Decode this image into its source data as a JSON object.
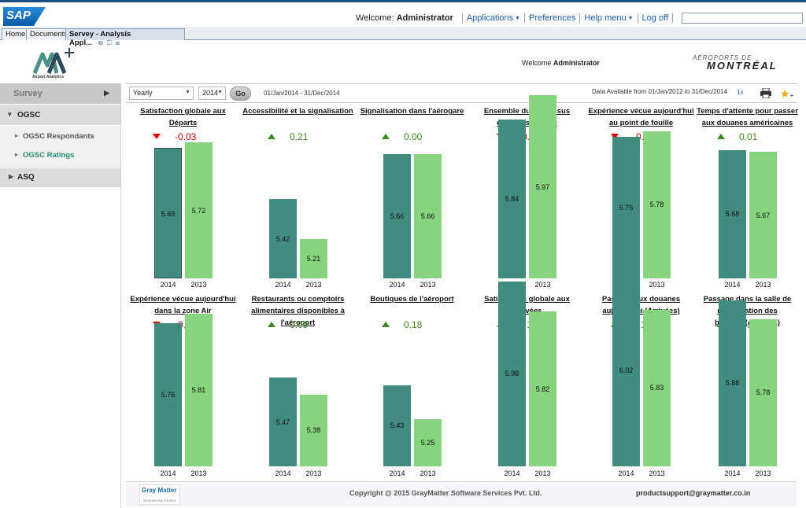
{
  "sap": {
    "logo": "SAP",
    "welcome_prefix": "Welcome:",
    "user": "Administrator",
    "nav": [
      "Applications",
      "Preferences",
      "Help menu",
      "Log off"
    ],
    "search_value": ""
  },
  "tabs": [
    "Home",
    "Documents",
    "Servey - Analysis Appl..."
  ],
  "app": {
    "logo_caption": "Airport Analytics",
    "welcome_label": "Welcome",
    "welcome_user": "Administrator",
    "brand_top": "AÉROPORTS DE",
    "brand_bottom": "MONTRÉAL"
  },
  "sidebar": {
    "survey": "Survey",
    "ogsc": "OGSC",
    "ogsc_items": [
      "OGSC Respondants",
      "OGSC Ratings"
    ],
    "asq": "ASQ"
  },
  "filters": {
    "period": "Yearly",
    "year": "2014",
    "go_label": "Go",
    "date_range": "01/Jan/2014 - 31/Dec/2014",
    "availability": "Data Available from 01/Jan/2012 to 31/Dec/2014",
    "zoom": "1x"
  },
  "colors": {
    "bar_2014": "#408c7e",
    "bar_2013": "#86d47e",
    "negative": "#e00000",
    "positive": "#3f8a20"
  },
  "chart_data": {
    "type": "bar",
    "categories": [
      "2014",
      "2013"
    ],
    "panels": [
      {
        "title": "Satisfaction globale aux Départs",
        "delta": "-0.03",
        "direction": "down",
        "values": [
          5.69,
          5.72
        ]
      },
      {
        "title": "Accessibilité et la signalisation",
        "delta": "0.21",
        "direction": "up",
        "values": [
          5.42,
          5.21
        ]
      },
      {
        "title": "Signalisation dans l'aérogare",
        "delta": "0.00",
        "direction": "up",
        "values": [
          5.66,
          5.66
        ]
      },
      {
        "title": "Ensemble du processus d'enregistrement",
        "delta": "-0.13",
        "direction": "down",
        "values": [
          5.84,
          5.97
        ]
      },
      {
        "title": "Expérience vécue aujourd'hui au point de fouille",
        "delta": "-0.03",
        "direction": "down",
        "values": [
          5.75,
          5.78
        ]
      },
      {
        "title": "Temps d'attente pour passer aux douanes américaines",
        "delta": "0.01",
        "direction": "up",
        "values": [
          5.68,
          5.67
        ]
      },
      {
        "title": "Expérience vécue aujourd'hui dans la zone Air",
        "delta": "-0.05",
        "direction": "down",
        "values": [
          5.76,
          5.81
        ]
      },
      {
        "title": "Restaurants ou comptoirs alimentaires disponibles à l'aéroport",
        "delta": "0.09",
        "direction": "up",
        "values": [
          5.47,
          5.38
        ]
      },
      {
        "title": "Boutiques de l'aéroport",
        "delta": "0.18",
        "direction": "up",
        "values": [
          5.43,
          5.25
        ]
      },
      {
        "title": "Satisfaction globale aux Arrivées",
        "delta": "0.15",
        "direction": "up",
        "values": [
          5.98,
          5.82
        ]
      },
      {
        "title": "Passage aux douanes aujourd'hui (Arrivées)",
        "delta": "0.18",
        "direction": "up",
        "values": [
          6.02,
          5.83
        ]
      },
      {
        "title": "Passage dans la salle de récupération des bagages(Arrivées)",
        "delta": "0.10",
        "direction": "up",
        "values": [
          5.88,
          5.78
        ]
      }
    ]
  },
  "footer": {
    "logo_text": "Gray Matter",
    "logo_tagline": "Empowering Intuition",
    "copyright": "Copyright @ 2015 GrayMatter Software Services Pvt. Ltd.",
    "support_email": "productsupport@graymatter.co.in"
  }
}
